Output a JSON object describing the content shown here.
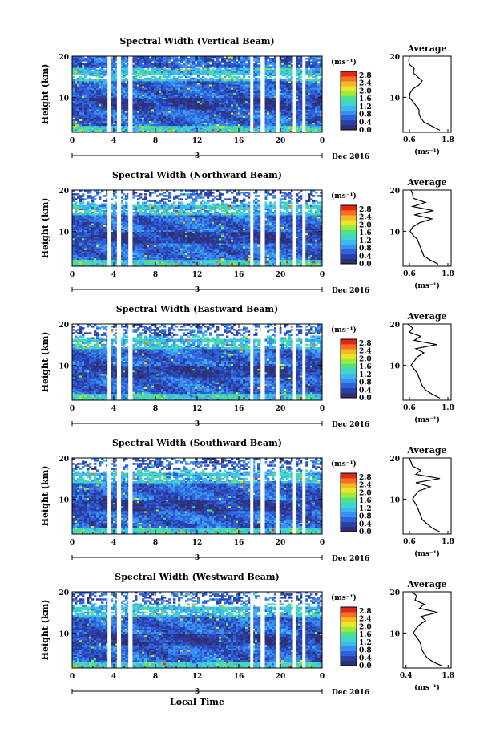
{
  "figure": {
    "xlabel": "Local Time",
    "date_label": "Dec 2016",
    "day_label": "3",
    "avg_title": "Average",
    "cbar_unit": "(ms⁻¹)",
    "avg_xlabel": "(ms⁻¹)"
  },
  "colorscale": [
    "#30306e",
    "#2a3fa8",
    "#2f62d8",
    "#3a8ef0",
    "#3fb7f0",
    "#3fd6d0",
    "#4fe08a",
    "#a0e83a",
    "#e8e82a",
    "#f5b82a",
    "#f56e22",
    "#e02818"
  ],
  "chart_data": [
    {
      "type": "heatmap",
      "title": "Spectral Width (Vertical Beam)",
      "ylabel": "Height (km)",
      "x_ticks": [
        "0",
        "4",
        "8",
        "12",
        "16",
        "20",
        "0"
      ],
      "xlim": [
        0,
        24
      ],
      "y_ticks": [
        "10",
        "20"
      ],
      "ylim": [
        1.5,
        20
      ],
      "colorbar": {
        "ticks": [
          "0.0",
          "0.4",
          "0.8",
          "1.2",
          "1.6",
          "2.0",
          "2.4",
          "2.8"
        ],
        "range": [
          0,
          3.0
        ]
      },
      "data_gaps_hours": [
        [
          3.4,
          3.7
        ],
        [
          4.3,
          4.7
        ],
        [
          5.4,
          5.8
        ],
        [
          17.1,
          17.4
        ],
        [
          18.1,
          18.5
        ],
        [
          19.6,
          19.9
        ],
        [
          21.2,
          21.5
        ],
        [
          22.1,
          22.4
        ]
      ],
      "average_profile": {
        "xlabel_ticks": [
          "0.6",
          "1.8"
        ],
        "xlim": [
          0.4,
          1.9
        ],
        "height_km": [
          2,
          3,
          4,
          5,
          6,
          7,
          8,
          9,
          10,
          11,
          12,
          13,
          14,
          15,
          16,
          17,
          18,
          19,
          20
        ],
        "width": [
          1.55,
          1.3,
          1.05,
          0.95,
          0.9,
          0.9,
          0.8,
          0.7,
          0.6,
          0.62,
          0.7,
          0.9,
          1.0,
          0.85,
          0.72,
          0.75,
          0.6,
          0.58,
          0.6
        ]
      }
    },
    {
      "type": "heatmap",
      "title": "Spectral Width (Northward Beam)",
      "ylabel": "Height (km)",
      "x_ticks": [
        "0",
        "4",
        "8",
        "12",
        "16",
        "20",
        "0"
      ],
      "xlim": [
        0,
        24
      ],
      "y_ticks": [
        "10",
        "20"
      ],
      "ylim": [
        1.5,
        20
      ],
      "colorbar": {
        "ticks": [
          "0.0",
          "0.4",
          "0.8",
          "1.2",
          "1.6",
          "2.0",
          "2.4",
          "2.8"
        ],
        "range": [
          0,
          3.0
        ]
      },
      "data_gaps_hours": [
        [
          3.4,
          3.7
        ],
        [
          4.3,
          4.7
        ],
        [
          5.4,
          5.8
        ],
        [
          17.1,
          17.4
        ],
        [
          18.1,
          18.5
        ],
        [
          19.6,
          19.9
        ],
        [
          21.2,
          21.5
        ],
        [
          22.1,
          22.4
        ]
      ],
      "average_profile": {
        "xlabel_ticks": [
          "0.6",
          "1.8"
        ],
        "xlim": [
          0.4,
          1.9
        ],
        "height_km": [
          2,
          3,
          4,
          5,
          6,
          7,
          8,
          9,
          10,
          11,
          12,
          13,
          14,
          15,
          16,
          17,
          18,
          19,
          20
        ],
        "width": [
          1.5,
          1.25,
          1.05,
          1.0,
          0.95,
          0.9,
          0.85,
          0.72,
          0.62,
          0.7,
          0.9,
          1.3,
          0.75,
          1.35,
          0.7,
          1.1,
          0.72,
          0.7,
          0.65
        ]
      }
    },
    {
      "type": "heatmap",
      "title": "Spectral Width (Eastward Beam)",
      "ylabel": "Height (km)",
      "x_ticks": [
        "0",
        "4",
        "8",
        "12",
        "16",
        "20",
        "0"
      ],
      "xlim": [
        0,
        24
      ],
      "y_ticks": [
        "10",
        "20"
      ],
      "ylim": [
        1.5,
        20
      ],
      "colorbar": {
        "ticks": [
          "0.0",
          "0.4",
          "0.8",
          "1.2",
          "1.6",
          "2.0",
          "2.4",
          "2.8"
        ],
        "range": [
          0,
          3.0
        ]
      },
      "data_gaps_hours": [
        [
          3.4,
          3.7
        ],
        [
          4.3,
          4.7
        ],
        [
          5.4,
          5.8
        ],
        [
          17.1,
          17.4
        ],
        [
          18.1,
          18.5
        ],
        [
          19.6,
          19.9
        ],
        [
          21.2,
          21.5
        ],
        [
          22.1,
          22.4
        ]
      ],
      "average_profile": {
        "xlabel_ticks": [
          "0.6",
          "1.8"
        ],
        "xlim": [
          0.4,
          1.9
        ],
        "height_km": [
          2,
          3,
          4,
          5,
          6,
          7,
          8,
          9,
          10,
          11,
          12,
          13,
          14,
          15,
          16,
          17,
          18,
          19,
          20
        ],
        "width": [
          1.55,
          1.3,
          1.1,
          1.0,
          0.95,
          0.9,
          0.85,
          0.75,
          0.65,
          0.75,
          0.85,
          1.05,
          0.8,
          1.45,
          0.75,
          0.95,
          0.6,
          0.7,
          0.55
        ]
      }
    },
    {
      "type": "heatmap",
      "title": "Spectral Width (Southward Beam)",
      "ylabel": "Height (km)",
      "x_ticks": [
        "0",
        "4",
        "8",
        "12",
        "16",
        "20",
        "0"
      ],
      "xlim": [
        0,
        24
      ],
      "y_ticks": [
        "10",
        "20"
      ],
      "ylim": [
        1.5,
        20
      ],
      "colorbar": {
        "ticks": [
          "0.0",
          "0.4",
          "0.8",
          "1.2",
          "1.6",
          "2.0",
          "2.4",
          "2.8"
        ],
        "range": [
          0,
          3.0
        ]
      },
      "data_gaps_hours": [
        [
          3.4,
          3.7
        ],
        [
          4.3,
          4.7
        ],
        [
          5.4,
          5.8
        ],
        [
          17.1,
          17.4
        ],
        [
          18.1,
          18.5
        ],
        [
          19.6,
          19.9
        ],
        [
          21.2,
          21.5
        ],
        [
          22.1,
          22.4
        ]
      ],
      "average_profile": {
        "xlabel_ticks": [
          "0.6",
          "1.8"
        ],
        "xlim": [
          0.4,
          1.9
        ],
        "height_km": [
          2,
          3,
          4,
          5,
          6,
          7,
          8,
          9,
          10,
          11,
          12,
          13,
          14,
          15,
          16,
          17,
          18,
          19,
          20
        ],
        "width": [
          1.55,
          1.3,
          1.15,
          1.0,
          0.95,
          0.9,
          0.85,
          0.78,
          0.7,
          0.78,
          0.9,
          1.25,
          0.8,
          1.55,
          0.8,
          0.95,
          0.7,
          0.65,
          0.6
        ]
      }
    },
    {
      "type": "heatmap",
      "title": "Spectral Width (Westward Beam)",
      "ylabel": "Height (km)",
      "x_ticks": [
        "0",
        "4",
        "8",
        "12",
        "16",
        "20",
        "0"
      ],
      "xlim": [
        0,
        24
      ],
      "y_ticks": [
        "10",
        "20"
      ],
      "ylim": [
        1.5,
        20
      ],
      "colorbar": {
        "ticks": [
          "0.0",
          "0.4",
          "0.8",
          "1.2",
          "1.6",
          "2.0",
          "2.4",
          "2.8"
        ],
        "range": [
          0,
          3.0
        ]
      },
      "data_gaps_hours": [
        [
          3.4,
          3.7
        ],
        [
          4.3,
          4.7
        ],
        [
          5.4,
          5.8
        ],
        [
          17.1,
          17.4
        ],
        [
          18.1,
          18.5
        ],
        [
          19.6,
          19.9
        ],
        [
          21.2,
          21.5
        ],
        [
          22.1,
          22.4
        ]
      ],
      "average_profile": {
        "xlabel_ticks": [
          "0.4",
          "1.8"
        ],
        "xlim": [
          0.3,
          1.9
        ],
        "height_km": [
          2,
          3,
          4,
          5,
          6,
          7,
          8,
          9,
          10,
          11,
          12,
          13,
          14,
          15,
          16,
          17,
          18,
          19,
          20
        ],
        "width": [
          1.6,
          1.3,
          1.1,
          1.0,
          0.92,
          0.9,
          0.85,
          0.75,
          0.65,
          0.72,
          0.85,
          1.05,
          0.9,
          1.45,
          0.85,
          1.0,
          0.7,
          0.75,
          0.6
        ]
      }
    }
  ]
}
